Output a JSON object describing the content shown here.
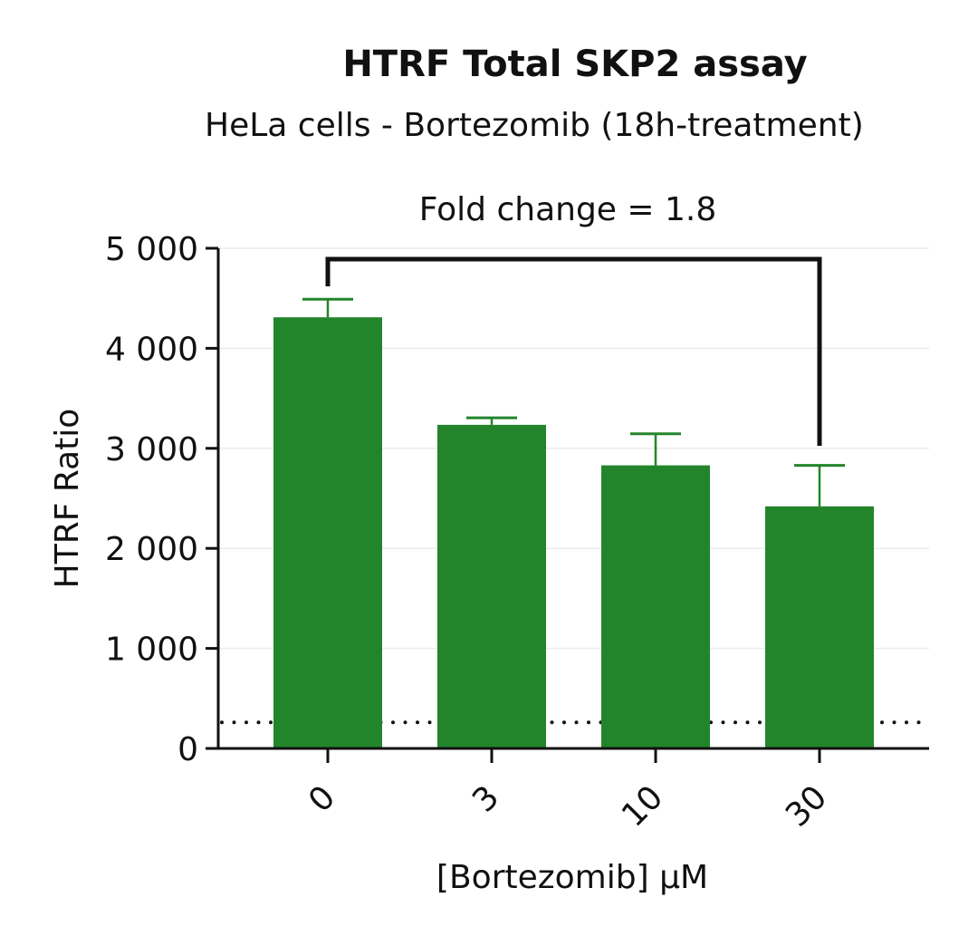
{
  "chart_data": {
    "type": "bar",
    "title": "HTRF Total SKP2 assay",
    "subtitle": "HeLa cells - Bortezomib (18h-treatment)",
    "xlabel": "[Bortezomib] µM",
    "ylabel": "HTRF Ratio",
    "categories": [
      "0",
      "3",
      "10",
      "30"
    ],
    "values": [
      4310,
      3235,
      2830,
      2420
    ],
    "error_upper": [
      4490,
      3305,
      3145,
      2830
    ],
    "ylim": [
      0,
      5000
    ],
    "yticks": [
      0,
      1000,
      2000,
      3000,
      4000,
      5000
    ],
    "ytick_labels": [
      "0",
      "1 000",
      "2 000",
      "3 000",
      "4 000",
      "5 000"
    ],
    "baseline_dotted": 260,
    "annotation": {
      "text": "Fold change = 1.8",
      "from": "0",
      "to": "30"
    },
    "bar_color": "#23852b",
    "grid": true
  }
}
